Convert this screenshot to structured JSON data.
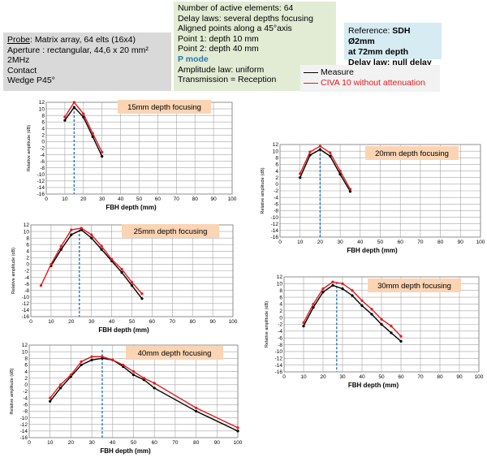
{
  "probe": {
    "label": "Probe",
    "line1": ": Matrix array, 64 elts (16x4)",
    "line2": "Aperture : rectangular, 44,6 x 20 mm²",
    "line3": "2MHz",
    "line4": "Contact",
    "line5": "Wedge P45°"
  },
  "params": {
    "line1": "Number of active elements: 64",
    "line2": "Delay laws: several depths focusing",
    "line3": "Aligned points along a 45°axis",
    "line4": "Point 1: depth 10 mm",
    "line5": "Point 2: depth 40 mm",
    "line6": "P mode",
    "line7": "Amplitude law: uniform",
    "line8": "Transmission = Reception"
  },
  "reference": {
    "prefix": "Reference: ",
    "bold1": "SDH Ø2mm",
    "bold2": "at 72mm  depth",
    "bold3": "Delay law: null delay law"
  },
  "legend": {
    "measure": "Measure",
    "civa": "CIVA 10 without attenuation"
  },
  "colors": {
    "measure": "#000000",
    "civa": "#e31a1c",
    "focus": "#2e75b6",
    "title_bg": "#fbd4b4"
  },
  "chart_data": [
    {
      "type": "line",
      "title": "15mm depth focusing",
      "xlabel": "FBH depth (mm)",
      "ylabel": "Relative amplitude (dB)",
      "xlim": [
        0,
        100
      ],
      "ylim": [
        -16,
        12
      ],
      "xticks": [
        "0",
        "10",
        "20",
        "30",
        "40",
        "50",
        "60",
        "70",
        "80",
        "90",
        "100"
      ],
      "yticks": [
        "12",
        "10",
        "8",
        "6",
        "4",
        "2",
        "0",
        "-2",
        "-4",
        "-6",
        "-8",
        "-10",
        "-12",
        "-14",
        "-16"
      ],
      "focus_x": 15,
      "series": [
        {
          "name": "Measure",
          "x": [
            10,
            15,
            20,
            25,
            30
          ],
          "y": [
            6.5,
            10.5,
            7.5,
            1.5,
            -4.5
          ]
        },
        {
          "name": "CIVA 10 without attenuation",
          "x": [
            10,
            15,
            20,
            25,
            30
          ],
          "y": [
            7.5,
            12,
            8.5,
            2.5,
            -3.2
          ]
        }
      ]
    },
    {
      "type": "line",
      "title": "20mm depth focusing",
      "xlabel": "FBH depth (mm)",
      "ylabel": "Relative amplitude (dB)",
      "xlim": [
        0,
        100
      ],
      "ylim": [
        -16,
        12
      ],
      "xticks": [
        "0",
        "10",
        "20",
        "30",
        "40",
        "50",
        "60",
        "70",
        "80",
        "90",
        "100"
      ],
      "yticks": [
        "12",
        "10",
        "8",
        "6",
        "4",
        "2",
        "0",
        "-2",
        "-4",
        "-6",
        "-8",
        "-10",
        "-12",
        "-14",
        "-16"
      ],
      "focus_x": 20,
      "series": [
        {
          "name": "Measure",
          "x": [
            10,
            15,
            20,
            25,
            30,
            35
          ],
          "y": [
            2,
            8.8,
            10.5,
            8.5,
            3,
            -2.2
          ]
        },
        {
          "name": "CIVA 10 without attenuation",
          "x": [
            10,
            15,
            20,
            25,
            30,
            35
          ],
          "y": [
            3.2,
            9.8,
            11.5,
            9.5,
            4,
            -1.5
          ]
        }
      ]
    },
    {
      "type": "line",
      "title": "25mm depth focusing",
      "xlabel": "FBH depth (mm)",
      "ylabel": "Relative amplitude (dB)",
      "xlim": [
        0,
        100
      ],
      "ylim": [
        -16,
        12
      ],
      "xticks": [
        "0",
        "10",
        "20",
        "30",
        "40",
        "50",
        "60",
        "70",
        "80",
        "90",
        "100"
      ],
      "yticks": [
        "12",
        "10",
        "8",
        "6",
        "4",
        "2",
        "0",
        "-2",
        "-4",
        "-6",
        "-8",
        "-10",
        "-12",
        "-14",
        "-16"
      ],
      "focus_x": 24,
      "series": [
        {
          "name": "Measure",
          "x": [
            10,
            15,
            20,
            25,
            30,
            35,
            40,
            45,
            50,
            55
          ],
          "y": [
            -0.5,
            4.5,
            9,
            10.5,
            8,
            4.5,
            1,
            -2.5,
            -6.5,
            -10.5
          ]
        },
        {
          "name": "CIVA 10 without attenuation",
          "x": [
            5,
            10,
            15,
            20,
            25,
            30,
            35,
            40,
            45,
            50,
            55
          ],
          "y": [
            -6.5,
            0,
            5.5,
            10.5,
            11,
            9,
            5.5,
            1.5,
            -1.5,
            -5.5,
            -9
          ]
        }
      ]
    },
    {
      "type": "line",
      "title": "30mm depth focusing",
      "xlabel": "FBH depth (mm)",
      "ylabel": "Relative amplitude (dB)",
      "xlim": [
        0,
        100
      ],
      "ylim": [
        -16,
        12
      ],
      "xticks": [
        "0",
        "10",
        "20",
        "30",
        "40",
        "50",
        "60",
        "70",
        "80",
        "90",
        "100"
      ],
      "yticks": [
        "12",
        "10",
        "8",
        "6",
        "4",
        "2",
        "0",
        "-2",
        "-4",
        "-6",
        "-8",
        "-10",
        "-12",
        "-14",
        "-16"
      ],
      "focus_x": 27,
      "series": [
        {
          "name": "Measure",
          "x": [
            10,
            15,
            20,
            25,
            30,
            35,
            40,
            45,
            50,
            55,
            60
          ],
          "y": [
            -2.5,
            3,
            7.5,
            9.5,
            8.5,
            6.5,
            3.5,
            1,
            -2,
            -4.5,
            -7
          ]
        },
        {
          "name": "CIVA 10 without attenuation",
          "x": [
            10,
            15,
            20,
            25,
            30,
            35,
            40,
            45,
            50,
            55,
            60
          ],
          "y": [
            -1.5,
            4,
            8.5,
            10.5,
            10,
            8,
            5,
            2.5,
            -0.5,
            -2.5,
            -5.5
          ]
        }
      ]
    },
    {
      "type": "line",
      "title": "40mm depth focusing",
      "xlabel": "FBH depth (mm)",
      "ylabel": "Relative amplitude (dB)",
      "xlim": [
        0,
        100
      ],
      "ylim": [
        -16,
        12
      ],
      "xticks": [
        "0",
        "10",
        "20",
        "30",
        "40",
        "50",
        "60",
        "70",
        "80",
        "90",
        "100"
      ],
      "yticks": [
        "12",
        "10",
        "8",
        "6",
        "4",
        "2",
        "0",
        "-2",
        "-4",
        "-6",
        "-8",
        "-10",
        "-12",
        "-14",
        "-16"
      ],
      "focus_x": 35,
      "series": [
        {
          "name": "Measure",
          "x": [
            10,
            15,
            20,
            25,
            30,
            35,
            40,
            45,
            50,
            55,
            60,
            80,
            100
          ],
          "y": [
            -5,
            -1,
            2.5,
            6,
            7.5,
            8,
            7.5,
            5.5,
            3,
            1.5,
            -1,
            -8,
            -14
          ]
        },
        {
          "name": "CIVA 10 without attenuation",
          "x": [
            10,
            15,
            20,
            25,
            30,
            35,
            40,
            45,
            50,
            55,
            60,
            80,
            100
          ],
          "y": [
            -4,
            0,
            3,
            7,
            8.5,
            8.5,
            7.5,
            6,
            4,
            2,
            0.5,
            -7,
            -13
          ]
        }
      ]
    }
  ]
}
